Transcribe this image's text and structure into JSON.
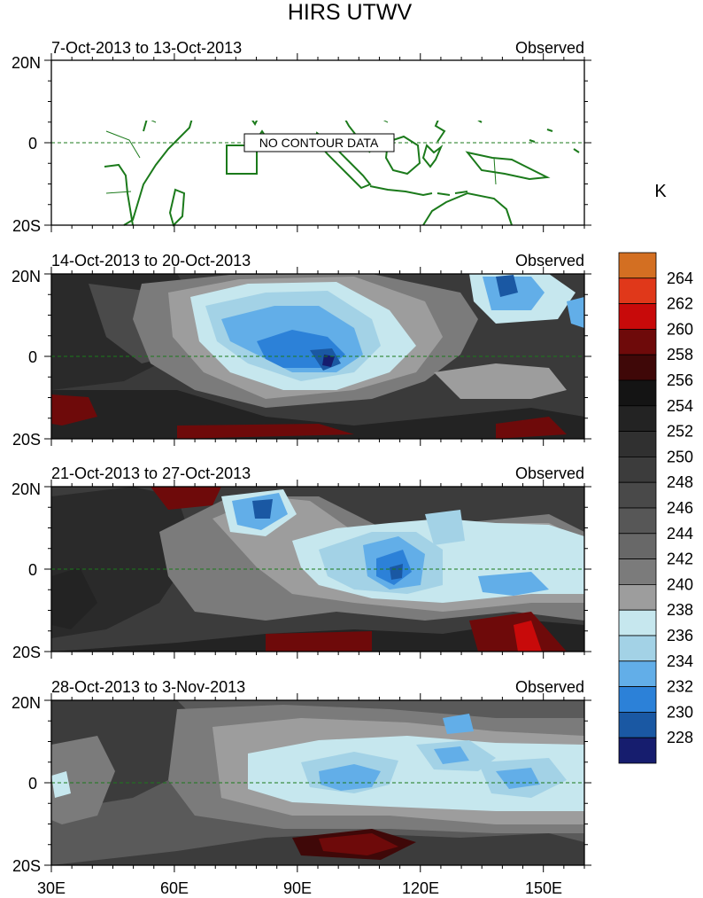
{
  "title": "HIRS UTWV",
  "colorbar": {
    "unit": "K",
    "levels": [
      264,
      262,
      260,
      258,
      256,
      254,
      252,
      250,
      248,
      246,
      244,
      242,
      240,
      238,
      236,
      234,
      232,
      230,
      228
    ],
    "colors": [
      "#d36f22",
      "#e0381a",
      "#c80a0a",
      "#6e0a0a",
      "#3f0808",
      "#141414",
      "#232323",
      "#303030",
      "#3c3c3c",
      "#494949",
      "#575757",
      "#686868",
      "#7b7b7b",
      "#9d9d9d",
      "#c6e7ee",
      "#a3d2e6",
      "#62aee8",
      "#2c81d8",
      "#1a58a3",
      "#161d6e"
    ]
  },
  "axes": {
    "x_ticks": [
      "30E",
      "60E",
      "90E",
      "120E",
      "150E"
    ],
    "y_ticks": [
      "20N",
      "0",
      "20S"
    ]
  },
  "panels": [
    {
      "period": "7-Oct-2013 to 13-Oct-2013",
      "label": "Observed",
      "no_data": true,
      "message": "NO CONTOUR DATA"
    },
    {
      "period": "14-Oct-2013 to 20-Oct-2013",
      "label": "Observed",
      "no_data": false
    },
    {
      "period": "21-Oct-2013 to 27-Oct-2013",
      "label": "Observed",
      "no_data": false
    },
    {
      "period": "28-Oct-2013 to 3-Nov-2013",
      "label": "Observed",
      "no_data": false
    }
  ],
  "map_style": {
    "coast_color": "#1b7a1b",
    "border_color": "#1b7a1b",
    "equator_style": "dashed"
  }
}
